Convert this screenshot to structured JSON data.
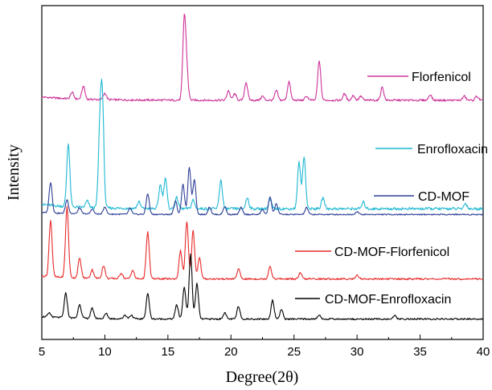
{
  "chart_data": {
    "type": "line",
    "title": "",
    "xlabel": "Degree(2θ)",
    "ylabel": "Intensity",
    "xlim": [
      5,
      40
    ],
    "xticks": [
      5,
      10,
      15,
      20,
      25,
      30,
      35,
      40
    ],
    "yticks_shown": false,
    "legend_placement": "inline-right-of-each-trace",
    "series": [
      {
        "name": "Florfenicol",
        "color": "#cc3399",
        "baseline": 0.03,
        "peaks": [
          [
            7.4,
            0.08
          ],
          [
            8.3,
            0.16
          ],
          [
            10.0,
            0.08
          ],
          [
            16.3,
            0.98
          ],
          [
            16.5,
            0.3
          ],
          [
            19.8,
            0.12
          ],
          [
            20.3,
            0.08
          ],
          [
            21.2,
            0.22
          ],
          [
            22.5,
            0.05
          ],
          [
            23.6,
            0.12
          ],
          [
            24.6,
            0.23
          ],
          [
            26.0,
            0.05
          ],
          [
            27.0,
            0.48
          ],
          [
            29.0,
            0.08
          ],
          [
            29.7,
            0.06
          ],
          [
            30.3,
            0.05
          ],
          [
            32.0,
            0.16
          ],
          [
            35.8,
            0.07
          ],
          [
            38.5,
            0.05
          ],
          [
            39.5,
            0.05
          ]
        ]
      },
      {
        "name": "Enrofloxacin",
        "color": "#1eb8d2",
        "baseline": 0.05,
        "peaks": [
          [
            7.1,
            0.58
          ],
          [
            8.6,
            0.06
          ],
          [
            9.6,
            0.65
          ],
          [
            9.8,
            0.95
          ],
          [
            12.7,
            0.06
          ],
          [
            14.4,
            0.22
          ],
          [
            14.8,
            0.28
          ],
          [
            15.7,
            0.1
          ],
          [
            17.0,
            0.08
          ],
          [
            19.2,
            0.26
          ],
          [
            21.3,
            0.1
          ],
          [
            23.1,
            0.08
          ],
          [
            25.4,
            0.42
          ],
          [
            25.8,
            0.48
          ],
          [
            27.3,
            0.1
          ],
          [
            30.5,
            0.06
          ],
          [
            38.6,
            0.05
          ]
        ]
      },
      {
        "name": "CD-MOF",
        "color": "#2e3f96",
        "baseline": 0.06,
        "peaks": [
          [
            5.7,
            0.62
          ],
          [
            7.0,
            0.28
          ],
          [
            8.0,
            0.12
          ],
          [
            9.0,
            0.1
          ],
          [
            10.0,
            0.15
          ],
          [
            12.0,
            0.12
          ],
          [
            13.4,
            0.42
          ],
          [
            15.6,
            0.28
          ],
          [
            16.2,
            0.6
          ],
          [
            16.7,
            0.95
          ],
          [
            17.1,
            0.7
          ],
          [
            18.3,
            0.15
          ],
          [
            19.5,
            0.16
          ],
          [
            20.8,
            0.14
          ],
          [
            22.5,
            0.1
          ],
          [
            23.1,
            0.36
          ],
          [
            23.6,
            0.22
          ],
          [
            26.0,
            0.14
          ],
          [
            30.0,
            0.06
          ]
        ]
      },
      {
        "name": "CD-MOF-Florfenicol",
        "color": "#e82a2a",
        "baseline": 0.05,
        "peaks": [
          [
            5.7,
            0.8
          ],
          [
            7.0,
            1.0
          ],
          [
            8.0,
            0.28
          ],
          [
            9.0,
            0.12
          ],
          [
            9.9,
            0.18
          ],
          [
            11.3,
            0.08
          ],
          [
            12.2,
            0.12
          ],
          [
            13.4,
            0.66
          ],
          [
            16.0,
            0.4
          ],
          [
            16.5,
            0.8
          ],
          [
            17.0,
            0.68
          ],
          [
            17.5,
            0.3
          ],
          [
            20.6,
            0.14
          ],
          [
            23.1,
            0.18
          ],
          [
            25.5,
            0.08
          ],
          [
            30.0,
            0.06
          ]
        ]
      },
      {
        "name": "CD-MOF-Enrofloxacin",
        "color": "#000000",
        "baseline": 0.03,
        "peaks": [
          [
            5.6,
            0.06
          ],
          [
            6.9,
            0.38
          ],
          [
            8.0,
            0.22
          ],
          [
            9.0,
            0.16
          ],
          [
            10.1,
            0.08
          ],
          [
            11.6,
            0.06
          ],
          [
            12.1,
            0.06
          ],
          [
            13.4,
            0.4
          ],
          [
            15.7,
            0.22
          ],
          [
            16.3,
            0.5
          ],
          [
            16.8,
            1.0
          ],
          [
            17.3,
            0.55
          ],
          [
            19.5,
            0.1
          ],
          [
            20.6,
            0.2
          ],
          [
            23.3,
            0.3
          ],
          [
            24.0,
            0.15
          ],
          [
            27.0,
            0.06
          ],
          [
            33.0,
            0.05
          ]
        ]
      }
    ]
  }
}
